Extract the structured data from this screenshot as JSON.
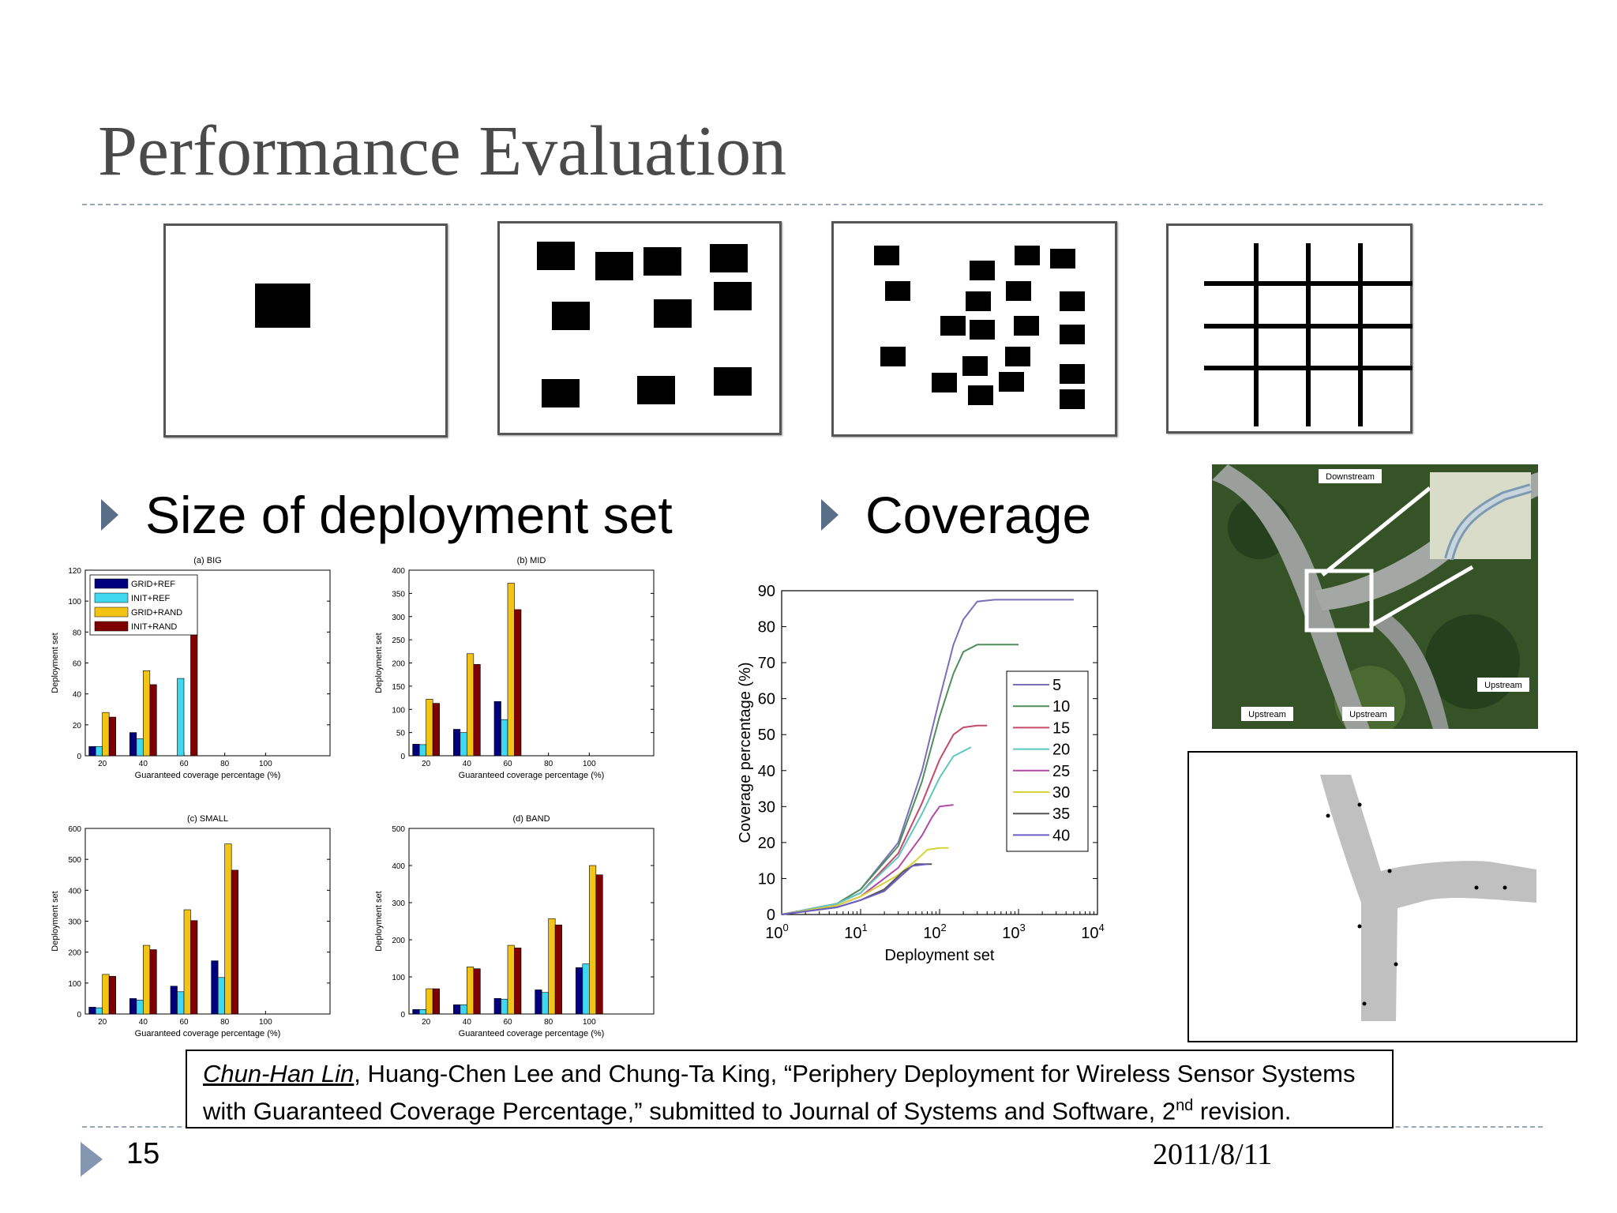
{
  "slide": {
    "title": "Performance Evaluation",
    "page_number": "15",
    "date": "2011/8/11"
  },
  "bullets": {
    "left": "Size of deployment set",
    "right": "Coverage"
  },
  "map": {
    "labels": [
      "Downstream",
      "Upstream",
      "Upstream",
      "Upstream"
    ]
  },
  "citation": {
    "author1": "Chun-Han Lin",
    "rest_line1": ", Huang-Chen Lee and Chung-Ta King, “Periphery Deployment for Wireless Sensor Systems",
    "line2_pre": "with Guaranteed Coverage Percentage,” submitted to Journal of Systems and Software, 2",
    "line2_sup": "nd",
    "line2_post": " revision."
  },
  "colors": {
    "accent": "#5a6e88",
    "grid_ref": "#00007f",
    "init_ref": "#3fd8f0",
    "grid_rand": "#f2c416",
    "init_rand": "#7f0000"
  },
  "chart_data": [
    {
      "type": "bar",
      "title": "(a) BIG",
      "xlabel": "Guaranteed coverage percentage (%)",
      "ylabel": "Deployment set",
      "ylim": [
        0,
        120
      ],
      "yticks": [
        0,
        20,
        40,
        60,
        80,
        100,
        120
      ],
      "categories": [
        "20",
        "40",
        "60",
        "80",
        "100"
      ],
      "legend": "top-left",
      "series": [
        {
          "name": "GRID+REF",
          "values": [
            6,
            15,
            null,
            null,
            null
          ]
        },
        {
          "name": "INIT+REF",
          "values": [
            6,
            11,
            50,
            null,
            null
          ]
        },
        {
          "name": "GRID+RAND",
          "values": [
            28,
            55,
            null,
            null,
            null
          ]
        },
        {
          "name": "INIT+RAND",
          "values": [
            25,
            46,
            115,
            null,
            null
          ]
        }
      ]
    },
    {
      "type": "bar",
      "title": "(b) MID",
      "xlabel": "Guaranteed coverage percentage (%)",
      "ylabel": "Deployment set",
      "ylim": [
        0,
        400
      ],
      "yticks": [
        0,
        50,
        100,
        150,
        200,
        250,
        300,
        350,
        400
      ],
      "categories": [
        "20",
        "40",
        "60",
        "80",
        "100"
      ],
      "series": [
        {
          "name": "GRID+REF",
          "values": [
            25,
            57,
            117,
            null,
            null
          ]
        },
        {
          "name": "INIT+REF",
          "values": [
            24,
            50,
            78,
            null,
            null
          ]
        },
        {
          "name": "GRID+RAND",
          "values": [
            122,
            220,
            372,
            null,
            null
          ]
        },
        {
          "name": "INIT+RAND",
          "values": [
            113,
            197,
            315,
            null,
            null
          ]
        }
      ]
    },
    {
      "type": "bar",
      "title": "(c) SMALL",
      "xlabel": "Guaranteed coverage percentage (%)",
      "ylabel": "Deployment set",
      "ylim": [
        0,
        600
      ],
      "yticks": [
        0,
        100,
        200,
        300,
        400,
        500,
        600
      ],
      "categories": [
        "20",
        "40",
        "60",
        "80",
        "100"
      ],
      "series": [
        {
          "name": "GRID+REF",
          "values": [
            22,
            50,
            90,
            172,
            null
          ]
        },
        {
          "name": "INIT+REF",
          "values": [
            20,
            45,
            72,
            118,
            null
          ]
        },
        {
          "name": "GRID+RAND",
          "values": [
            128,
            222,
            337,
            550,
            null
          ]
        },
        {
          "name": "INIT+RAND",
          "values": [
            122,
            208,
            302,
            465,
            null
          ]
        }
      ]
    },
    {
      "type": "bar",
      "title": "(d) BAND",
      "xlabel": "Guaranteed coverage percentage (%)",
      "ylabel": "Deployment set",
      "ylim": [
        0,
        500
      ],
      "yticks": [
        0,
        100,
        200,
        300,
        400,
        500
      ],
      "categories": [
        "20",
        "40",
        "60",
        "80",
        "100"
      ],
      "series": [
        {
          "name": "GRID+REF",
          "values": [
            12,
            25,
            42,
            65,
            125
          ]
        },
        {
          "name": "INIT+REF",
          "values": [
            12,
            25,
            40,
            58,
            135
          ]
        },
        {
          "name": "GRID+RAND",
          "values": [
            68,
            127,
            185,
            257,
            400
          ]
        },
        {
          "name": "INIT+RAND",
          "values": [
            68,
            122,
            178,
            240,
            375
          ]
        }
      ]
    },
    {
      "type": "line",
      "xlabel": "Deployment set",
      "ylabel": "Coverage percentage (%)",
      "xscale": "log",
      "xlim": [
        1,
        10000
      ],
      "ylim": [
        0,
        90
      ],
      "yticks": [
        0,
        10,
        20,
        30,
        40,
        50,
        60,
        70,
        80,
        90
      ],
      "xticks": [
        "10^0",
        "10^1",
        "10^2",
        "10^3",
        "10^4"
      ],
      "legend": "center-right",
      "series": [
        {
          "name": "5",
          "color": "#7a6fb8",
          "x": [
            1,
            5,
            10,
            30,
            60,
            100,
            150,
            200,
            300,
            500,
            1000,
            5000
          ],
          "y": [
            0,
            3,
            7,
            20,
            40,
            60,
            75,
            82,
            87,
            87.5,
            87.5,
            87.5
          ]
        },
        {
          "name": "10",
          "color": "#4e8f5a",
          "x": [
            1,
            5,
            10,
            30,
            60,
            100,
            150,
            200,
            300,
            1000
          ],
          "y": [
            0,
            3,
            7,
            19,
            37,
            55,
            67,
            73,
            75,
            75
          ]
        },
        {
          "name": "15",
          "color": "#c44a6a",
          "x": [
            1,
            5,
            10,
            30,
            60,
            100,
            150,
            200,
            300,
            400
          ],
          "y": [
            0,
            3,
            6,
            17,
            31,
            43,
            50,
            52,
            52.5,
            52.5
          ]
        },
        {
          "name": "20",
          "color": "#5fc7c2",
          "x": [
            1,
            5,
            10,
            30,
            60,
            100,
            150,
            250
          ],
          "y": [
            0,
            3,
            6,
            16,
            28,
            38,
            44,
            46.5
          ]
        },
        {
          "name": "25",
          "color": "#b04aa8",
          "x": [
            1,
            5,
            10,
            30,
            60,
            80,
            100,
            150
          ],
          "y": [
            0,
            2.5,
            5,
            13,
            22,
            27,
            30,
            30.5
          ]
        },
        {
          "name": "30",
          "color": "#d7d43a",
          "x": [
            1,
            5,
            10,
            30,
            50,
            70,
            100,
            130
          ],
          "y": [
            0,
            2.5,
            5,
            11,
            15,
            18,
            18.5,
            18.5
          ]
        },
        {
          "name": "35",
          "color": "#555555",
          "x": [
            1,
            5,
            10,
            20,
            35,
            50,
            80
          ],
          "y": [
            0,
            2,
            4,
            7,
            12,
            14,
            14
          ]
        },
        {
          "name": "40",
          "color": "#6a5ec4",
          "x": [
            1,
            5,
            10,
            20,
            30,
            45,
            70
          ],
          "y": [
            0,
            2,
            4,
            6.5,
            10,
            13.5,
            14
          ]
        }
      ]
    }
  ]
}
